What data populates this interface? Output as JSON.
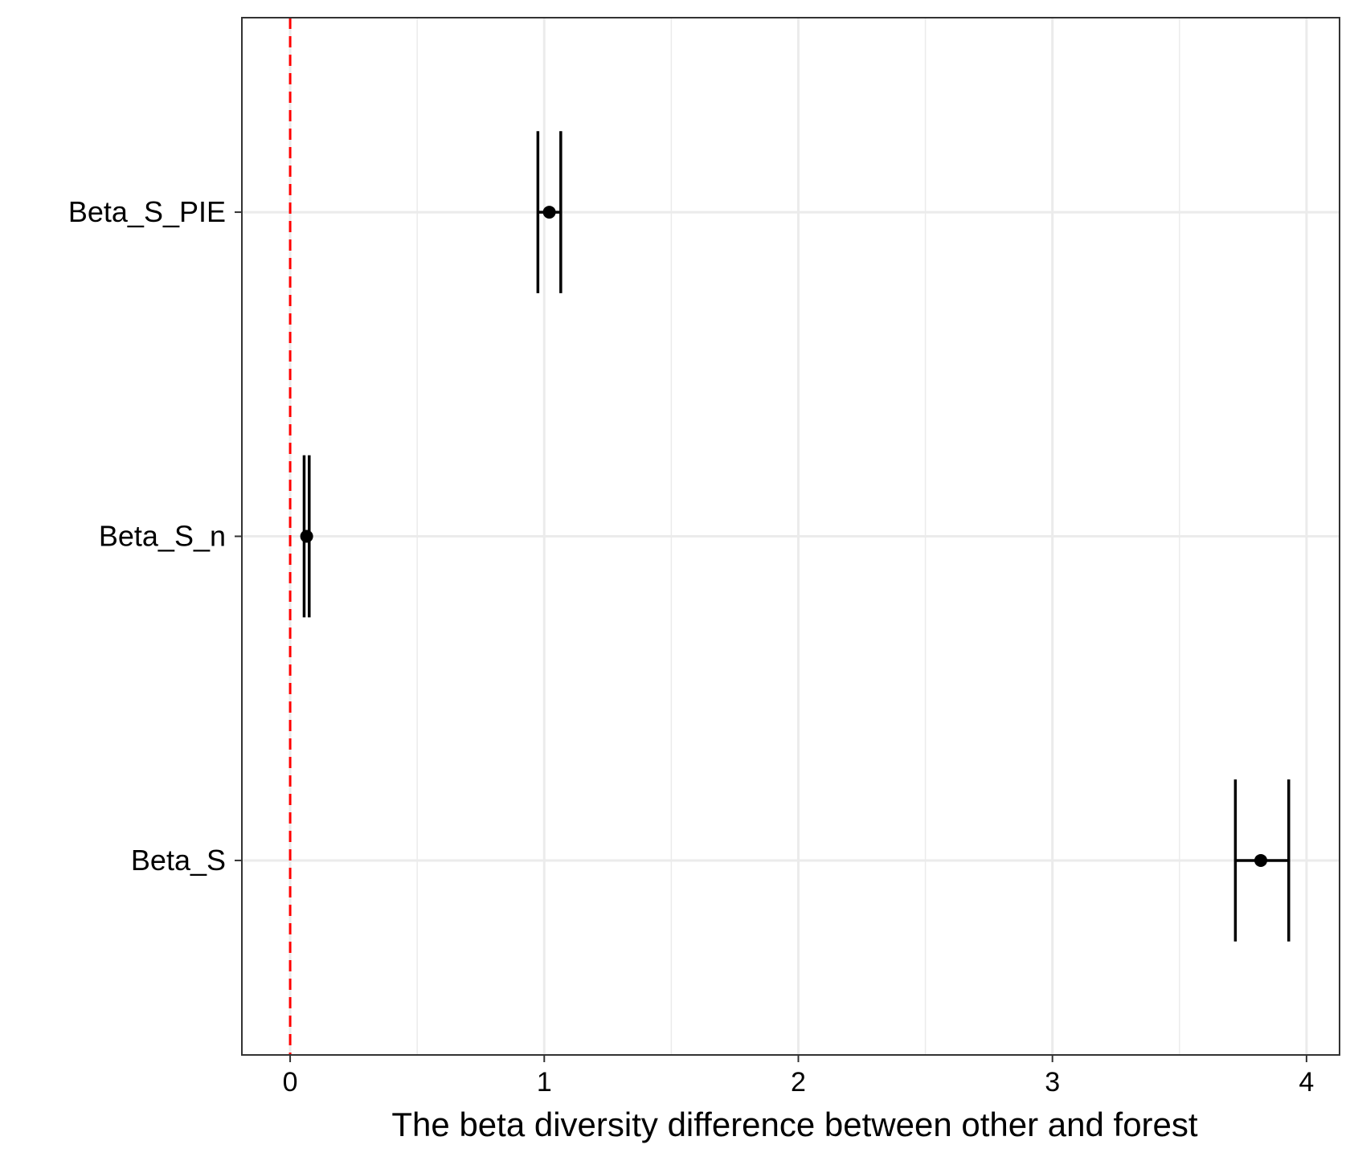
{
  "chart_data": {
    "type": "forest",
    "title": "",
    "xlabel": "The beta diversity difference between other and forest",
    "ylabel": "",
    "xlim": [
      -0.19,
      4.13
    ],
    "x_ticks": [
      "0",
      "1",
      "2",
      "3",
      "4"
    ],
    "x_tick_values": [
      0,
      1,
      2,
      3,
      4
    ],
    "grid": true,
    "reference_line": {
      "x": 0,
      "color": "#ff0000",
      "style": "dashed"
    },
    "categories": [
      "Beta_S_PIE",
      "Beta_S_n",
      "Beta_S"
    ],
    "series": [
      {
        "estimate": [
          1.02,
          0.065,
          3.82
        ],
        "lower": [
          0.98,
          0.06,
          3.72
        ],
        "upper": [
          1.07,
          0.075,
          3.93
        ],
        "whisker_lower": [
          0.975,
          0.055,
          3.72
        ],
        "whisker_upper": [
          1.065,
          0.075,
          3.93
        ]
      }
    ],
    "colors": {
      "point": "#000000",
      "grid": "#ebebeb",
      "panel_border": "#333333"
    }
  }
}
